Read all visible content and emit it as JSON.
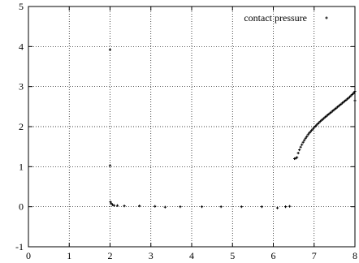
{
  "chart_data": {
    "type": "scatter",
    "title": "",
    "xlabel": "",
    "ylabel": "",
    "xlim": [
      0,
      8
    ],
    "ylim": [
      -1,
      5
    ],
    "xticks": [
      0,
      1,
      2,
      3,
      4,
      5,
      6,
      7,
      8
    ],
    "yticks": [
      -1,
      0,
      1,
      2,
      3,
      4,
      5
    ],
    "grid": true,
    "legend_position": "top-right",
    "marker_color": "#000000",
    "series": [
      {
        "name": "contact pressure",
        "points": [
          [
            2.0,
            3.92
          ],
          [
            2.0,
            1.03
          ],
          [
            2.01,
            0.12
          ],
          [
            2.03,
            0.08
          ],
          [
            2.06,
            0.05
          ],
          [
            2.1,
            0.03
          ],
          [
            2.18,
            0.03
          ],
          [
            2.35,
            0.02
          ],
          [
            2.72,
            0.02
          ],
          [
            3.1,
            0.01
          ],
          [
            3.35,
            -0.01
          ],
          [
            3.72,
            0.0
          ],
          [
            4.25,
            0.0
          ],
          [
            4.72,
            0.0
          ],
          [
            5.22,
            0.0
          ],
          [
            5.72,
            0.0
          ],
          [
            6.1,
            -0.03
          ],
          [
            6.3,
            0.0
          ],
          [
            6.4,
            0.01
          ],
          [
            6.52,
            1.2
          ],
          [
            6.55,
            1.21
          ],
          [
            6.58,
            1.23
          ],
          [
            6.61,
            1.34
          ],
          [
            6.64,
            1.42
          ],
          [
            6.67,
            1.49
          ],
          [
            6.7,
            1.55
          ],
          [
            6.73,
            1.61
          ],
          [
            6.76,
            1.66
          ],
          [
            6.79,
            1.71
          ],
          [
            6.82,
            1.75
          ],
          [
            6.85,
            1.8
          ],
          [
            6.88,
            1.84
          ],
          [
            6.91,
            1.87
          ],
          [
            6.94,
            1.91
          ],
          [
            6.97,
            1.94
          ],
          [
            7.0,
            1.98
          ],
          [
            7.03,
            2.01
          ],
          [
            7.06,
            2.04
          ],
          [
            7.09,
            2.07
          ],
          [
            7.12,
            2.1
          ],
          [
            7.15,
            2.13
          ],
          [
            7.18,
            2.16
          ],
          [
            7.21,
            2.18
          ],
          [
            7.24,
            2.21
          ],
          [
            7.27,
            2.24
          ],
          [
            7.3,
            2.26
          ],
          [
            7.33,
            2.29
          ],
          [
            7.36,
            2.31
          ],
          [
            7.39,
            2.34
          ],
          [
            7.42,
            2.36
          ],
          [
            7.45,
            2.39
          ],
          [
            7.48,
            2.41
          ],
          [
            7.51,
            2.44
          ],
          [
            7.54,
            2.46
          ],
          [
            7.57,
            2.49
          ],
          [
            7.6,
            2.51
          ],
          [
            7.63,
            2.54
          ],
          [
            7.66,
            2.56
          ],
          [
            7.69,
            2.59
          ],
          [
            7.72,
            2.61
          ],
          [
            7.75,
            2.64
          ],
          [
            7.78,
            2.66
          ],
          [
            7.81,
            2.69
          ],
          [
            7.84,
            2.71
          ],
          [
            7.87,
            2.74
          ],
          [
            7.9,
            2.77
          ],
          [
            7.93,
            2.8
          ],
          [
            7.96,
            2.83
          ],
          [
            7.98,
            2.85
          ],
          [
            8.0,
            2.88
          ],
          [
            8.0,
            2.65
          ]
        ]
      }
    ]
  }
}
